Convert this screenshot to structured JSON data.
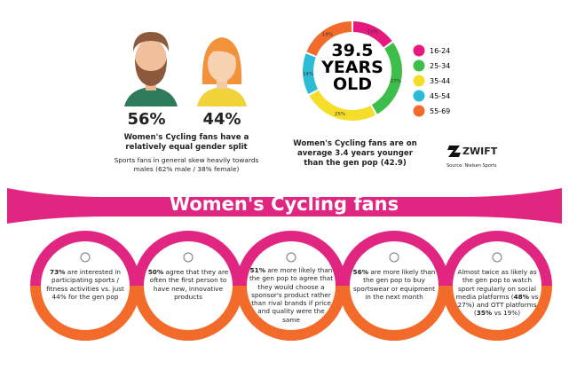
{
  "gender": {
    "male_value": "56%",
    "female_value": "44%",
    "caption": "Women's Cycling fans have a relatively equal gender split",
    "note": "Sports fans in general skew heavily towards males (62% male / 38% female)"
  },
  "chart_data": {
    "type": "donut",
    "center_text": [
      "39.5",
      "YEARS",
      "OLD"
    ],
    "categories": [
      "16-24",
      "25-34",
      "35-44",
      "45-54",
      "55-69"
    ],
    "values": [
      15,
      27,
      25,
      14,
      19
    ],
    "value_labels": [
      "15%",
      "27%",
      "25%",
      "14%",
      "19%"
    ],
    "colors": [
      "#e5197e",
      "#3dbd4a",
      "#f5de2a",
      "#2bbcd4",
      "#f26b2a"
    ],
    "caption": "Women's Cycling fans are on average 3.4 years younger than the gen pop (42.9)"
  },
  "brand": {
    "logo": "ZWIFT",
    "source": "Source: Nielsen Sports"
  },
  "banner": {
    "title": "Women's Cycling fans"
  },
  "cards": [
    {
      "parts": [
        {
          "text": "73%",
          "bold": true
        },
        {
          "text": " are interested in participating sports / fitness activities vs. just 44% for the gen pop"
        }
      ]
    },
    {
      "parts": [
        {
          "text": "50%",
          "bold": true
        },
        {
          "text": " agree that they are often the first person to have new, innovative products"
        }
      ]
    },
    {
      "parts": [
        {
          "text": "51%",
          "bold": true
        },
        {
          "text": " are more likely than the gen pop to agree that they would choose a sponsor's product rather than rival brands if price and quality were the same"
        }
      ]
    },
    {
      "parts": [
        {
          "text": "56%",
          "bold": true
        },
        {
          "text": " are more likely than the gen pop to buy sportswear or equipment in the next month"
        }
      ]
    },
    {
      "parts": [
        {
          "text": "Almost twice as likely as the gen pop to watch sport regularly on social media platforms ("
        },
        {
          "text": "48%",
          "bold": true
        },
        {
          "text": " vs 27%) and OTT platforms ("
        },
        {
          "text": "35%",
          "bold": true
        },
        {
          "text": " vs 19%)"
        }
      ]
    }
  ]
}
